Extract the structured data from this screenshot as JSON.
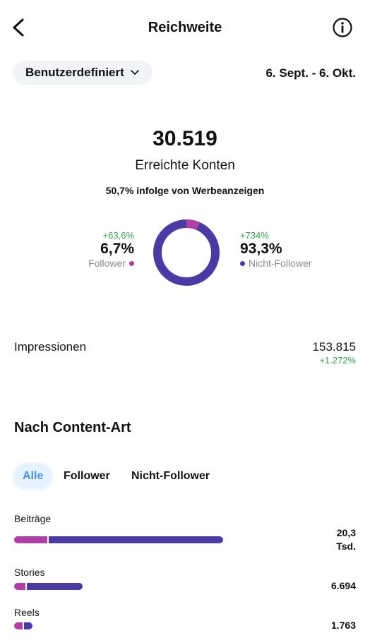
{
  "header": {
    "title": "Reichweite"
  },
  "filter": {
    "range_label": "Benutzerdefiniert",
    "date_range": "6. Sept. - 6. Okt."
  },
  "summary": {
    "reached": "30.519",
    "reached_label": "Erreichte Konten",
    "ads_note": "50,7% infolge von Werbeanzeigen"
  },
  "split": {
    "follower": {
      "change": "+63,6%",
      "percent": "6,7%",
      "label": "Follower",
      "share": 0.067
    },
    "non_follower": {
      "change": "+734%",
      "percent": "93,3%",
      "label": "Nicht-Follower",
      "share": 0.933
    }
  },
  "impressions": {
    "label": "Impressionen",
    "value": "153.815",
    "change": "+1.272%"
  },
  "content": {
    "title": "Nach Content-Art",
    "tabs": [
      "Alle",
      "Follower",
      "Nicht-Follower"
    ],
    "rows": [
      {
        "label": "Beiträge",
        "value_line1": "20,3",
        "value_line2": "Tsd.",
        "follower_frac": 0.16
      },
      {
        "label": "Stories",
        "value_line1": "6.694",
        "value_line2": "",
        "follower_frac": 0.16
      },
      {
        "label": "Reels",
        "value_line1": "1.763",
        "value_line2": "",
        "follower_frac": 0.45
      }
    ]
  },
  "colors": {
    "follower": "#b03fa5",
    "non_follower": "#4b3aa6",
    "positive": "#2fa24d"
  }
}
